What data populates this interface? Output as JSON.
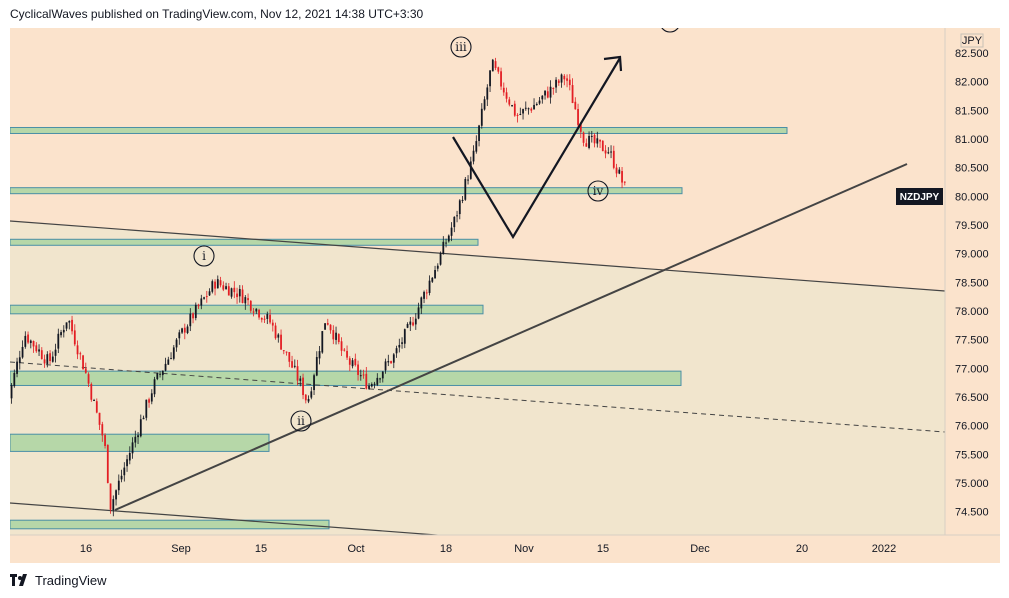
{
  "header": {
    "text": "CyclicalWaves published on TradingView.com, Nov 12, 2021 14:38 UTC+3:30"
  },
  "footer": {
    "brand": "TradingView",
    "logo_icon": "tradingview-logo-icon"
  },
  "chart_data": {
    "type": "candlestick",
    "symbol": "NZDJPY",
    "currency": "JPY",
    "ylim": [
      74.2,
      82.9
    ],
    "y_ticks": [
      "82.500",
      "82.000",
      "81.500",
      "81.000",
      "80.500",
      "80.000",
      "79.500",
      "79.000",
      "78.500",
      "78.000",
      "77.500",
      "77.000",
      "76.500",
      "76.000",
      "75.500",
      "75.000",
      "74.500"
    ],
    "x_ticks": [
      "16",
      "Sep",
      "15",
      "Oct",
      "18",
      "Nov",
      "15",
      "Dec",
      "20",
      "2022"
    ],
    "last_price_label": "NZDJPY",
    "price_path": [
      [
        "Aug 3",
        76.3
      ],
      [
        "Aug 6",
        77.6
      ],
      [
        "Aug 10",
        77.1
      ],
      [
        "Aug 13",
        77.9
      ],
      [
        "Aug 16",
        76.9
      ],
      [
        "Aug 19",
        75.7
      ],
      [
        "Aug 20",
        74.6
      ],
      [
        "Aug 24",
        75.8
      ],
      [
        "Aug 27",
        76.7
      ],
      [
        "Sep 1",
        77.7
      ],
      [
        "Sep 6",
        78.5
      ],
      [
        "Sep 10",
        78.3
      ],
      [
        "Sep 15",
        77.8
      ],
      [
        "Sep 20",
        76.7
      ],
      [
        "Sep 21",
        76.4
      ],
      [
        "Sep 24",
        77.9
      ],
      [
        "Sep 27",
        77.2
      ],
      [
        "Oct 1",
        76.7
      ],
      [
        "Oct 5",
        77.2
      ],
      [
        "Oct 8",
        77.8
      ],
      [
        "Oct 12",
        78.8
      ],
      [
        "Oct 15",
        79.6
      ],
      [
        "Oct 18",
        80.7
      ],
      [
        "Oct 21",
        82.3
      ],
      [
        "Oct 25",
        81.4
      ],
      [
        "Oct 28",
        81.6
      ],
      [
        "Nov 2",
        82.1
      ],
      [
        "Nov 5",
        81.0
      ],
      [
        "Nov 9",
        80.8
      ],
      [
        "Nov 12",
        80.05
      ]
    ],
    "support_resistance_zones": [
      {
        "from": 81.2,
        "to": 81.1
      },
      {
        "from": 80.15,
        "to": 80.05
      },
      {
        "from": 79.25,
        "to": 79.15
      },
      {
        "from": 78.1,
        "to": 77.95
      },
      {
        "from": 76.95,
        "to": 76.7
      },
      {
        "from": 75.85,
        "to": 75.55
      },
      {
        "from": 74.35,
        "to": 74.2
      }
    ],
    "wave_labels": [
      "i",
      "ii",
      "iii",
      "iv",
      "v"
    ],
    "projection": "down to ~79.3 then up above 82.5",
    "colors": {
      "background": "#ffffff",
      "plot_upper": "#fbe3cc",
      "plot_lower": "#f1e5cd",
      "zone_fill": "#b6d7a8",
      "zone_border": "#4a8fa6",
      "candle_up": "#131722",
      "candle_down": "#e31e24",
      "line": "#444444",
      "price_label_bg": "#131722"
    }
  }
}
